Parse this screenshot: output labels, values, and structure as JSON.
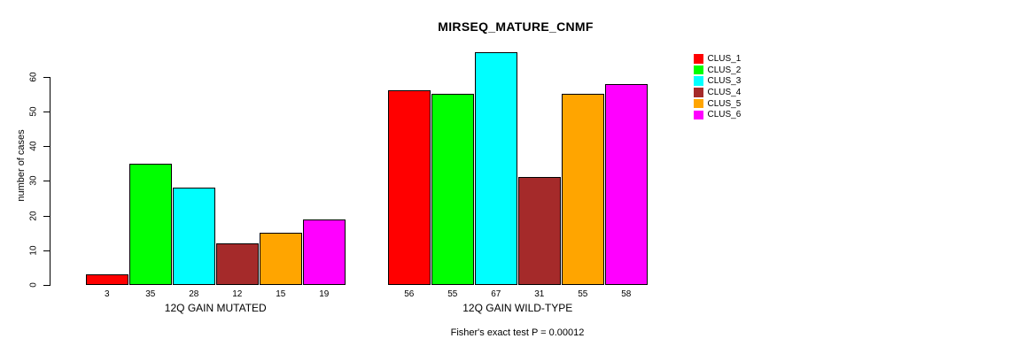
{
  "chart_data": {
    "type": "bar",
    "title": "MIRSEQ_MATURE_CNMF",
    "ylabel": "number of cases",
    "xlabel": "",
    "yticks": [
      0,
      10,
      20,
      30,
      40,
      50,
      60
    ],
    "ylim": [
      0,
      68
    ],
    "grid": false,
    "legend_position": "right-outside",
    "background_color": "#FFFFFF",
    "axis_color": "#000000",
    "series": [
      {
        "name": "CLUS_1",
        "color": "#FF0000"
      },
      {
        "name": "CLUS_2",
        "color": "#00FF00"
      },
      {
        "name": "CLUS_3",
        "color": "#00FFFF"
      },
      {
        "name": "CLUS_4",
        "color": "#A52A2A"
      },
      {
        "name": "CLUS_5",
        "color": "#FFA500"
      },
      {
        "name": "CLUS_6",
        "color": "#FF00FF"
      }
    ],
    "groups": [
      {
        "label": "12Q GAIN MUTATED",
        "values": [
          3,
          35,
          28,
          12,
          15,
          19
        ]
      },
      {
        "label": "12Q GAIN WILD-TYPE",
        "values": [
          56,
          55,
          67,
          31,
          55,
          58
        ]
      }
    ],
    "bar_value_labels_shown": true,
    "annotation": "Fisher's exact test P = 0.00012"
  }
}
